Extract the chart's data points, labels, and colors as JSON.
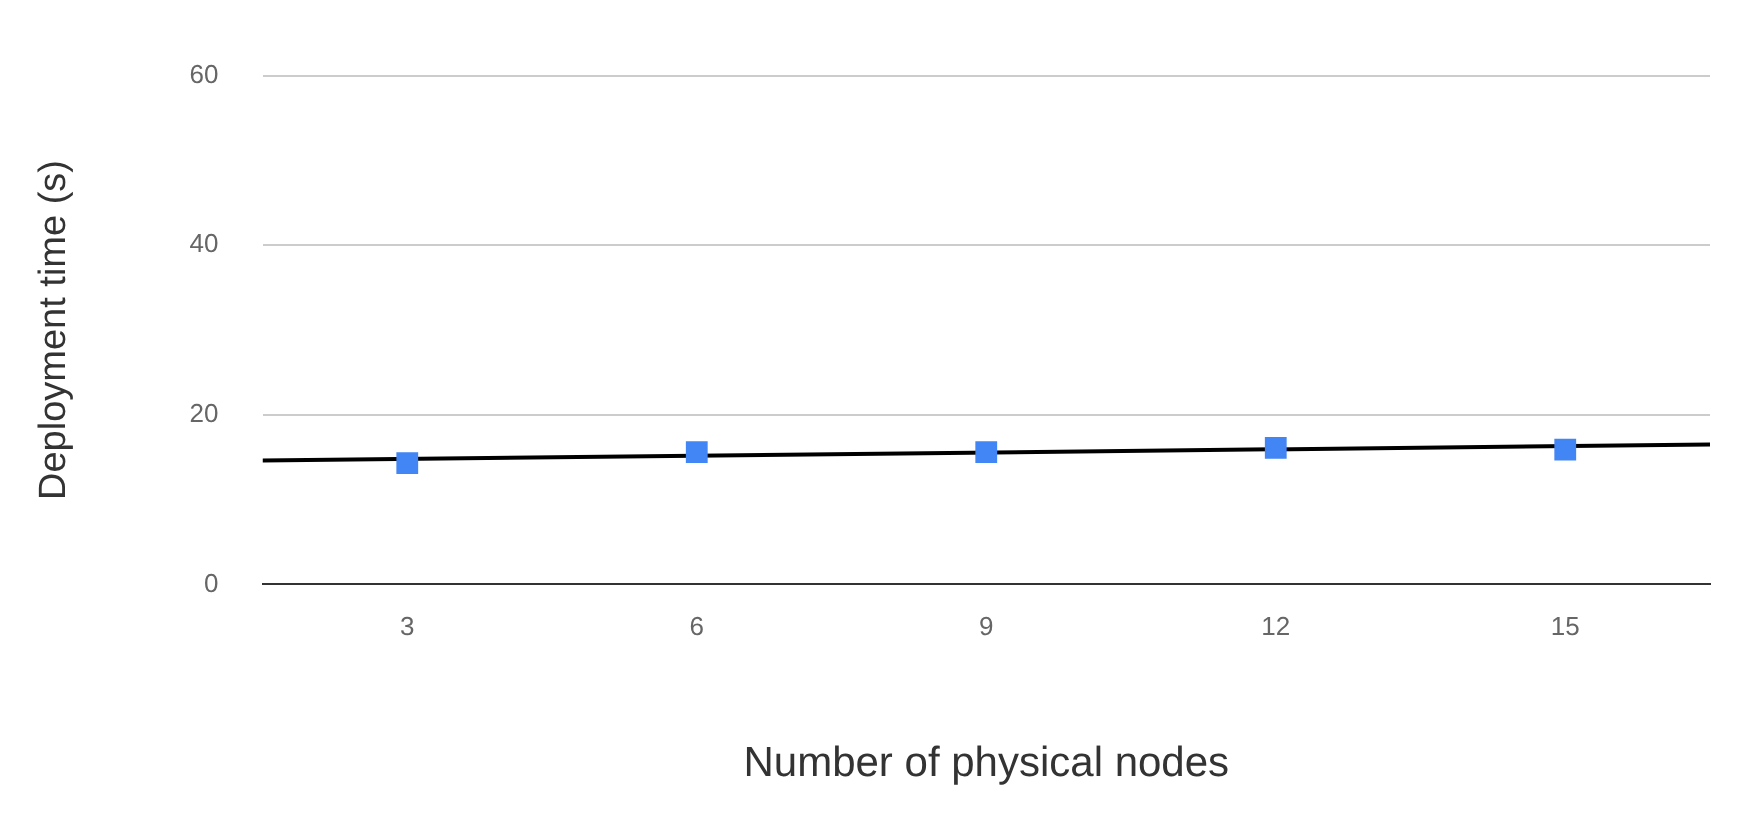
{
  "chart_data": {
    "type": "scatter",
    "xlabel": "Number of physical nodes",
    "ylabel": "Deployment time (s)",
    "x": [
      3,
      6,
      9,
      12,
      15
    ],
    "series": [
      {
        "type": "scatter",
        "color": "#4285f4",
        "values": [
          14.3,
          15.6,
          15.6,
          16.1,
          15.9
        ],
        "marker": "square"
      },
      {
        "type": "line",
        "color": "#000000",
        "x": [
          1.5,
          16.5
        ],
        "values": [
          14.6,
          16.5
        ],
        "marker": "none"
      }
    ],
    "xlim": [
      1.5,
      16.5
    ],
    "xticks": [
      3,
      6,
      9,
      12,
      15
    ],
    "ylim": [
      0,
      60
    ],
    "yticks": [
      0,
      20,
      40,
      60
    ],
    "grid": "y",
    "legend": false
  }
}
